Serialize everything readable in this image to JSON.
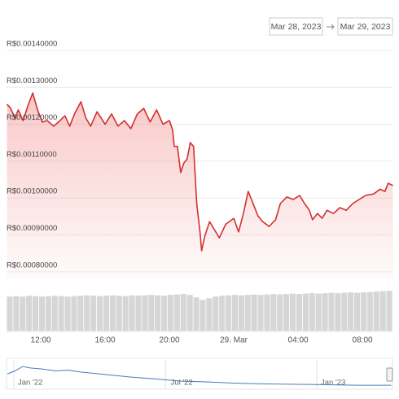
{
  "chart_data": {
    "type": "line",
    "date_range": {
      "from": "Mar 28, 2023",
      "to": "Mar 29, 2023"
    },
    "series": [
      {
        "color": "#d32f2f",
        "x": [
          9.9,
          10.1,
          10.4,
          10.6,
          10.9,
          11.2,
          11.5,
          11.8,
          12.1,
          12.4,
          12.8,
          13.1,
          13.5,
          13.8,
          14.1,
          14.5,
          14.8,
          15.1,
          15.5,
          16.0,
          16.4,
          16.8,
          17.2,
          17.6,
          18.0,
          18.4,
          18.8,
          19.2,
          19.6,
          20.0,
          20.2,
          20.3,
          20.5,
          20.7,
          20.9,
          21.1,
          21.3,
          21.5,
          21.7,
          21.9,
          22.0,
          22.2,
          22.5,
          22.8,
          23.1,
          23.5,
          24.0,
          24.3,
          24.6,
          24.9,
          25.2,
          25.5,
          25.8,
          26.2,
          26.6,
          26.9,
          27.3,
          27.7,
          28.1,
          28.4,
          28.7,
          28.9,
          29.2,
          29.5,
          29.8,
          30.2,
          30.6,
          31.0,
          31.4,
          31.8,
          32.2,
          32.7,
          33.1,
          33.4,
          33.6,
          33.9
        ],
        "values": [
          0.001254,
          0.001245,
          0.001217,
          0.001239,
          0.00121,
          0.00125,
          0.001285,
          0.001239,
          0.001206,
          0.00121,
          0.001195,
          0.001206,
          0.001223,
          0.001195,
          0.001228,
          0.001261,
          0.001217,
          0.001195,
          0.001234,
          0.0012,
          0.001228,
          0.001195,
          0.00121,
          0.001188,
          0.001228,
          0.001243,
          0.001206,
          0.001239,
          0.0012,
          0.00121,
          0.001184,
          0.00114,
          0.00114,
          0.001069,
          0.001095,
          0.001106,
          0.00115,
          0.00114,
          0.000985,
          0.000908,
          0.000857,
          0.000897,
          0.000936,
          0.000914,
          0.000892,
          0.000929,
          0.000945,
          0.000908,
          0.000958,
          0.001018,
          0.000985,
          0.000952,
          0.000936,
          0.000923,
          0.000941,
          0.000985,
          0.001003,
          0.000996,
          0.001007,
          0.000985,
          0.000967,
          0.000941,
          0.000958,
          0.000945,
          0.000967,
          0.000958,
          0.000974,
          0.000967,
          0.000985,
          0.000996,
          0.001007,
          0.001011,
          0.001024,
          0.001018,
          0.00104,
          0.001034
        ]
      }
    ],
    "xlim": [
      9.87,
      33.87
    ],
    "xticks": [
      {
        "value": 12,
        "label": "12:00"
      },
      {
        "value": 16,
        "label": "16:00"
      },
      {
        "value": 20,
        "label": "20:00"
      },
      {
        "value": 24,
        "label": "29. Mar"
      },
      {
        "value": 28,
        "label": "04:00"
      },
      {
        "value": 32,
        "label": "08:00"
      }
    ],
    "ylim": [
      0.00078,
      0.00142
    ],
    "yticks": [
      {
        "value": 0.0014,
        "label": "R$0.00140000"
      },
      {
        "value": 0.0013,
        "label": "R$0.00130000"
      },
      {
        "value": 0.0012,
        "label": "R$0.00120000"
      },
      {
        "value": 0.0011,
        "label": "R$0.00110000"
      },
      {
        "value": 0.001,
        "label": "R$0.00100000"
      },
      {
        "value": 0.0009,
        "label": "R$0.00090000"
      },
      {
        "value": 0.0008,
        "label": "R$0.00080000"
      }
    ],
    "grid": true,
    "volume": {
      "color": "#d6d6d6",
      "lim": [
        0,
        100
      ],
      "values": [
        82,
        83,
        82,
        84,
        83,
        82,
        83,
        84,
        83,
        82,
        83,
        84,
        85,
        84,
        83,
        84,
        85,
        84,
        83,
        85,
        84,
        85,
        86,
        85,
        84,
        86,
        87,
        88,
        86,
        80,
        74,
        78,
        82,
        84,
        85,
        86,
        85,
        86,
        87,
        86,
        87,
        88,
        87,
        88,
        89,
        88,
        89,
        90,
        89,
        90,
        91,
        90,
        91,
        92,
        91,
        92,
        93,
        94,
        95,
        96
      ]
    },
    "navigator": {
      "color": "#4a7ab8",
      "xlim": [
        -0.94,
        14.35
      ],
      "ylim": [
        0,
        0.008
      ],
      "x": [
        -0.9,
        -0.6,
        -0.3,
        0,
        0.5,
        1,
        1.5,
        2,
        3,
        4,
        5,
        6,
        7,
        8,
        9,
        10,
        11,
        12,
        13,
        14.3
      ],
      "values": [
        0.0042,
        0.005,
        0.0062,
        0.0058,
        0.0055,
        0.005,
        0.0052,
        0.0047,
        0.004,
        0.0033,
        0.0028,
        0.0022,
        0.002,
        0.0017,
        0.0015,
        0.0014,
        0.0013,
        0.0012,
        0.0011,
        0.0011
      ],
      "xticks": [
        {
          "value": 0,
          "label": "Jan '22"
        },
        {
          "value": 6,
          "label": "Jul '22"
        },
        {
          "value": 12,
          "label": "Jan '23"
        }
      ]
    }
  }
}
